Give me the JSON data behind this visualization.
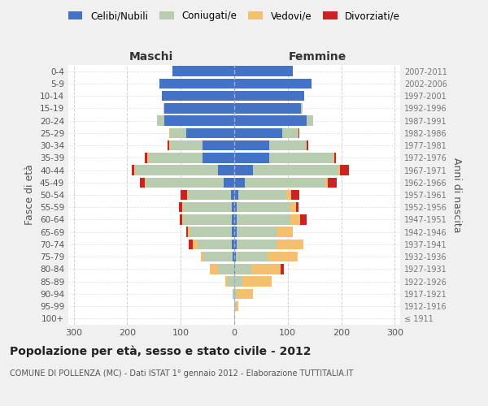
{
  "age_groups": [
    "100+",
    "95-99",
    "90-94",
    "85-89",
    "80-84",
    "75-79",
    "70-74",
    "65-69",
    "60-64",
    "55-59",
    "50-54",
    "45-49",
    "40-44",
    "35-39",
    "30-34",
    "25-29",
    "20-24",
    "15-19",
    "10-14",
    "5-9",
    "0-4"
  ],
  "birth_years": [
    "≤ 1911",
    "1912-1916",
    "1917-1921",
    "1922-1926",
    "1927-1931",
    "1932-1936",
    "1937-1941",
    "1942-1946",
    "1947-1951",
    "1952-1956",
    "1957-1961",
    "1962-1966",
    "1967-1971",
    "1972-1976",
    "1977-1981",
    "1982-1986",
    "1987-1991",
    "1992-1996",
    "1997-2001",
    "2002-2006",
    "2007-2011"
  ],
  "males": {
    "celibe": [
      0,
      0,
      0,
      0,
      0,
      3,
      4,
      4,
      5,
      5,
      6,
      20,
      30,
      60,
      60,
      90,
      130,
      130,
      135,
      140,
      115
    ],
    "coniugato": [
      0,
      0,
      3,
      12,
      30,
      55,
      65,
      80,
      90,
      90,
      80,
      145,
      155,
      100,
      60,
      30,
      15,
      2,
      0,
      0,
      0
    ],
    "vedovo": [
      0,
      0,
      0,
      5,
      15,
      5,
      8,
      3,
      2,
      2,
      2,
      2,
      2,
      2,
      1,
      1,
      0,
      0,
      0,
      0,
      0
    ],
    "divorziato": [
      0,
      0,
      0,
      0,
      0,
      0,
      8,
      3,
      5,
      7,
      12,
      10,
      5,
      5,
      3,
      1,
      0,
      0,
      0,
      0,
      0
    ]
  },
  "females": {
    "nubile": [
      0,
      0,
      0,
      0,
      2,
      3,
      4,
      4,
      5,
      5,
      8,
      20,
      35,
      65,
      65,
      90,
      135,
      125,
      130,
      145,
      110
    ],
    "coniugata": [
      0,
      3,
      5,
      15,
      30,
      60,
      75,
      75,
      100,
      100,
      90,
      150,
      160,
      120,
      70,
      30,
      12,
      3,
      0,
      0,
      0
    ],
    "vedova": [
      2,
      5,
      30,
      55,
      55,
      55,
      50,
      30,
      18,
      10,
      8,
      4,
      2,
      2,
      1,
      0,
      0,
      0,
      0,
      0,
      0
    ],
    "divorziata": [
      0,
      0,
      0,
      0,
      5,
      0,
      0,
      0,
      12,
      5,
      15,
      18,
      18,
      3,
      3,
      1,
      0,
      0,
      0,
      0,
      0
    ]
  },
  "colors": {
    "celibe": "#4472C4",
    "coniugato": "#B8CCB0",
    "vedovo": "#F5C06E",
    "divorziato": "#CC2222"
  },
  "xlim": 310,
  "title": "Popolazione per età, sesso e stato civile - 2012",
  "subtitle": "COMUNE DI POLLENZA (MC) - Dati ISTAT 1° gennaio 2012 - Elaborazione TUTTITALIA.IT",
  "ylabel_left": "Fasce di età",
  "ylabel_right": "Anni di nascita",
  "xlabel_left": "Maschi",
  "xlabel_right": "Femmine",
  "legend_labels": [
    "Celibi/Nubili",
    "Coniugati/e",
    "Vedovi/e",
    "Divorziati/e"
  ],
  "background_color": "#f0f0f0",
  "plot_background": "#ffffff"
}
